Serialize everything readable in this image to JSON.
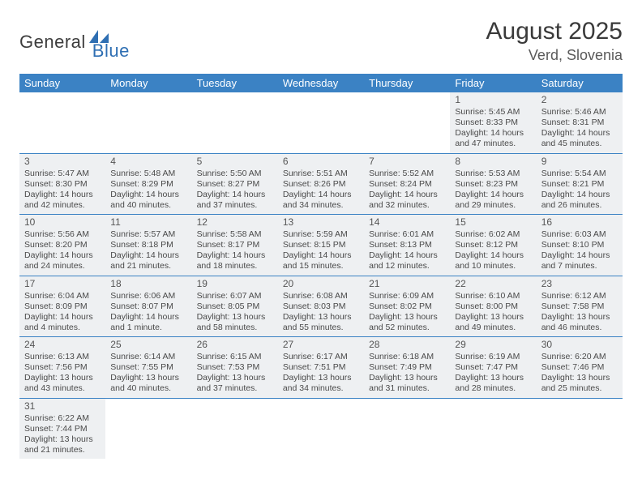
{
  "brand": {
    "word1": "General",
    "word2": "Blue",
    "word1_color": "#3d3d3d",
    "word2_color": "#2f6fb3"
  },
  "title": "August 2025",
  "location": "Verd, Slovenia",
  "colors": {
    "header_bg": "#3b82c4",
    "header_fg": "#ffffff",
    "cell_filled_bg": "#eef0f2",
    "row_border": "#3b82c4",
    "page_bg": "#ffffff"
  },
  "weekdays": [
    "Sunday",
    "Monday",
    "Tuesday",
    "Wednesday",
    "Thursday",
    "Friday",
    "Saturday"
  ],
  "weeks": [
    [
      null,
      null,
      null,
      null,
      null,
      {
        "n": "1",
        "sr": "Sunrise: 5:45 AM",
        "ss": "Sunset: 8:33 PM",
        "d1": "Daylight: 14 hours",
        "d2": "and 47 minutes."
      },
      {
        "n": "2",
        "sr": "Sunrise: 5:46 AM",
        "ss": "Sunset: 8:31 PM",
        "d1": "Daylight: 14 hours",
        "d2": "and 45 minutes."
      }
    ],
    [
      {
        "n": "3",
        "sr": "Sunrise: 5:47 AM",
        "ss": "Sunset: 8:30 PM",
        "d1": "Daylight: 14 hours",
        "d2": "and 42 minutes."
      },
      {
        "n": "4",
        "sr": "Sunrise: 5:48 AM",
        "ss": "Sunset: 8:29 PM",
        "d1": "Daylight: 14 hours",
        "d2": "and 40 minutes."
      },
      {
        "n": "5",
        "sr": "Sunrise: 5:50 AM",
        "ss": "Sunset: 8:27 PM",
        "d1": "Daylight: 14 hours",
        "d2": "and 37 minutes."
      },
      {
        "n": "6",
        "sr": "Sunrise: 5:51 AM",
        "ss": "Sunset: 8:26 PM",
        "d1": "Daylight: 14 hours",
        "d2": "and 34 minutes."
      },
      {
        "n": "7",
        "sr": "Sunrise: 5:52 AM",
        "ss": "Sunset: 8:24 PM",
        "d1": "Daylight: 14 hours",
        "d2": "and 32 minutes."
      },
      {
        "n": "8",
        "sr": "Sunrise: 5:53 AM",
        "ss": "Sunset: 8:23 PM",
        "d1": "Daylight: 14 hours",
        "d2": "and 29 minutes."
      },
      {
        "n": "9",
        "sr": "Sunrise: 5:54 AM",
        "ss": "Sunset: 8:21 PM",
        "d1": "Daylight: 14 hours",
        "d2": "and 26 minutes."
      }
    ],
    [
      {
        "n": "10",
        "sr": "Sunrise: 5:56 AM",
        "ss": "Sunset: 8:20 PM",
        "d1": "Daylight: 14 hours",
        "d2": "and 24 minutes."
      },
      {
        "n": "11",
        "sr": "Sunrise: 5:57 AM",
        "ss": "Sunset: 8:18 PM",
        "d1": "Daylight: 14 hours",
        "d2": "and 21 minutes."
      },
      {
        "n": "12",
        "sr": "Sunrise: 5:58 AM",
        "ss": "Sunset: 8:17 PM",
        "d1": "Daylight: 14 hours",
        "d2": "and 18 minutes."
      },
      {
        "n": "13",
        "sr": "Sunrise: 5:59 AM",
        "ss": "Sunset: 8:15 PM",
        "d1": "Daylight: 14 hours",
        "d2": "and 15 minutes."
      },
      {
        "n": "14",
        "sr": "Sunrise: 6:01 AM",
        "ss": "Sunset: 8:13 PM",
        "d1": "Daylight: 14 hours",
        "d2": "and 12 minutes."
      },
      {
        "n": "15",
        "sr": "Sunrise: 6:02 AM",
        "ss": "Sunset: 8:12 PM",
        "d1": "Daylight: 14 hours",
        "d2": "and 10 minutes."
      },
      {
        "n": "16",
        "sr": "Sunrise: 6:03 AM",
        "ss": "Sunset: 8:10 PM",
        "d1": "Daylight: 14 hours",
        "d2": "and 7 minutes."
      }
    ],
    [
      {
        "n": "17",
        "sr": "Sunrise: 6:04 AM",
        "ss": "Sunset: 8:09 PM",
        "d1": "Daylight: 14 hours",
        "d2": "and 4 minutes."
      },
      {
        "n": "18",
        "sr": "Sunrise: 6:06 AM",
        "ss": "Sunset: 8:07 PM",
        "d1": "Daylight: 14 hours",
        "d2": "and 1 minute."
      },
      {
        "n": "19",
        "sr": "Sunrise: 6:07 AM",
        "ss": "Sunset: 8:05 PM",
        "d1": "Daylight: 13 hours",
        "d2": "and 58 minutes."
      },
      {
        "n": "20",
        "sr": "Sunrise: 6:08 AM",
        "ss": "Sunset: 8:03 PM",
        "d1": "Daylight: 13 hours",
        "d2": "and 55 minutes."
      },
      {
        "n": "21",
        "sr": "Sunrise: 6:09 AM",
        "ss": "Sunset: 8:02 PM",
        "d1": "Daylight: 13 hours",
        "d2": "and 52 minutes."
      },
      {
        "n": "22",
        "sr": "Sunrise: 6:10 AM",
        "ss": "Sunset: 8:00 PM",
        "d1": "Daylight: 13 hours",
        "d2": "and 49 minutes."
      },
      {
        "n": "23",
        "sr": "Sunrise: 6:12 AM",
        "ss": "Sunset: 7:58 PM",
        "d1": "Daylight: 13 hours",
        "d2": "and 46 minutes."
      }
    ],
    [
      {
        "n": "24",
        "sr": "Sunrise: 6:13 AM",
        "ss": "Sunset: 7:56 PM",
        "d1": "Daylight: 13 hours",
        "d2": "and 43 minutes."
      },
      {
        "n": "25",
        "sr": "Sunrise: 6:14 AM",
        "ss": "Sunset: 7:55 PM",
        "d1": "Daylight: 13 hours",
        "d2": "and 40 minutes."
      },
      {
        "n": "26",
        "sr": "Sunrise: 6:15 AM",
        "ss": "Sunset: 7:53 PM",
        "d1": "Daylight: 13 hours",
        "d2": "and 37 minutes."
      },
      {
        "n": "27",
        "sr": "Sunrise: 6:17 AM",
        "ss": "Sunset: 7:51 PM",
        "d1": "Daylight: 13 hours",
        "d2": "and 34 minutes."
      },
      {
        "n": "28",
        "sr": "Sunrise: 6:18 AM",
        "ss": "Sunset: 7:49 PM",
        "d1": "Daylight: 13 hours",
        "d2": "and 31 minutes."
      },
      {
        "n": "29",
        "sr": "Sunrise: 6:19 AM",
        "ss": "Sunset: 7:47 PM",
        "d1": "Daylight: 13 hours",
        "d2": "and 28 minutes."
      },
      {
        "n": "30",
        "sr": "Sunrise: 6:20 AM",
        "ss": "Sunset: 7:46 PM",
        "d1": "Daylight: 13 hours",
        "d2": "and 25 minutes."
      }
    ],
    [
      {
        "n": "31",
        "sr": "Sunrise: 6:22 AM",
        "ss": "Sunset: 7:44 PM",
        "d1": "Daylight: 13 hours",
        "d2": "and 21 minutes."
      },
      null,
      null,
      null,
      null,
      null,
      null
    ]
  ]
}
